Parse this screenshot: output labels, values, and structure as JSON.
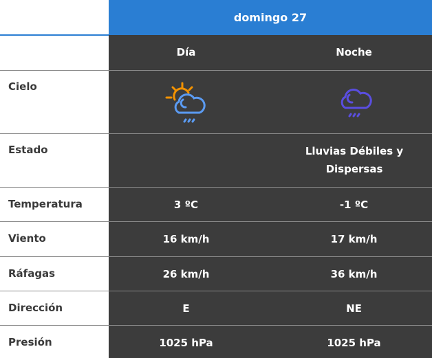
{
  "header": {
    "date": "domingo 27",
    "columns": [
      "Día",
      "Noche"
    ]
  },
  "rows": [
    {
      "label": "Cielo",
      "day_icon": "sun-cloud-rain-icon",
      "night_icon": "cloud-rain-icon"
    },
    {
      "label": "Estado",
      "day": "",
      "night": "Lluvias Débiles y Dispersas"
    },
    {
      "label": "Temperatura",
      "day": "3 ºC",
      "night": "-1 ºC"
    },
    {
      "label": "Viento",
      "day": "16 km/h",
      "night": "17 km/h"
    },
    {
      "label": "Ráfagas",
      "day": "26 km/h",
      "night": "36 km/h"
    },
    {
      "label": "Dirección",
      "day": "E",
      "night": "NE"
    },
    {
      "label": "Presión",
      "day": "1025 hPa",
      "night": "1025 hPa"
    }
  ],
  "colors": {
    "header": "#2a7ed3",
    "sun": "#f39200",
    "day_cloud": "#5b9bf2",
    "night_cloud": "#5a4ee0"
  }
}
